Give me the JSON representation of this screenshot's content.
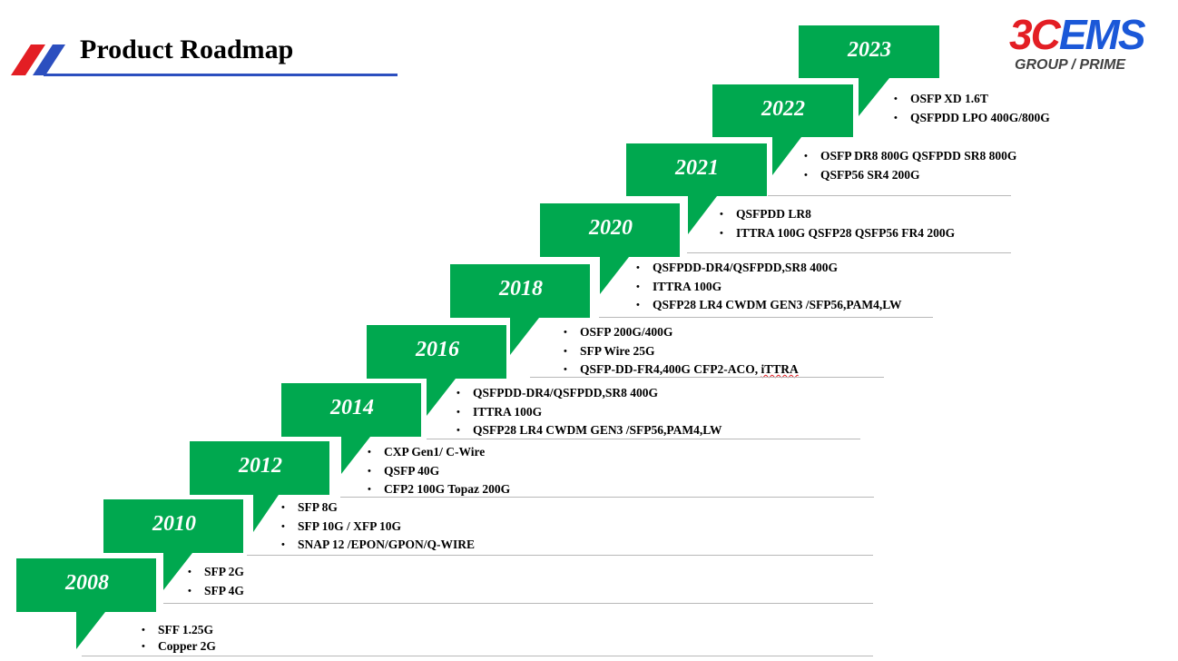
{
  "page": {
    "title": "Product Roadmap"
  },
  "brand": {
    "name_red": "3C",
    "name_blue": "EMS",
    "subline": "GROUP / PRIME"
  },
  "colors": {
    "callout_green": "#00a84f",
    "title_rule": "#2c4fbf",
    "brand_red": "#e31e24",
    "brand_blue": "#1b58d8"
  },
  "milestones": [
    {
      "year": "2008",
      "items": [
        "SFF 1.25G",
        "Copper 2G"
      ]
    },
    {
      "year": "2010",
      "items": [
        "SFP 2G",
        "SFP 4G"
      ]
    },
    {
      "year": "2012",
      "items": [
        "SFP 8G",
        "SFP 10G / XFP 10G",
        "SNAP 12 /EPON/GPON/Q-WIRE"
      ]
    },
    {
      "year": "2014",
      "items": [
        "CXP Gen1/ C-Wire",
        "QSFP  40G",
        "CFP2   100G Topaz  200G"
      ]
    },
    {
      "year": "2016",
      "items": [
        "QSFPDD-DR4/QSFPDD,SR8 400G",
        "ITTRA 100G",
        "QSFP28 LR4 CWDM GEN3 /SFP56,PAM4,LW"
      ]
    },
    {
      "year": "2018",
      "items": [
        "OSFP 200G/400G",
        "SFP Wire 25G",
        "QSFP-DD-FR4,400G CFP2-ACO,"
      ],
      "extra": "iTTRA"
    },
    {
      "year": "2020",
      "items": [
        "QSFPDD-DR4/QSFPDD,SR8 400G",
        "ITTRA 100G",
        "QSFP28 LR4 CWDM GEN3 /SFP56,PAM4,LW"
      ]
    },
    {
      "year": "2021",
      "items": [
        "QSFPDD LR8",
        "ITTRA 100G QSFP28 QSFP56 FR4 200G"
      ]
    },
    {
      "year": "2022",
      "items": [
        "OSFP DR8 800G  QSFPDD SR8 800G",
        "QSFP56 SR4 200G"
      ]
    },
    {
      "year": "2023",
      "items": [
        "OSFP XD 1.6T",
        "QSFPDD LPO 400G/800G"
      ]
    }
  ]
}
